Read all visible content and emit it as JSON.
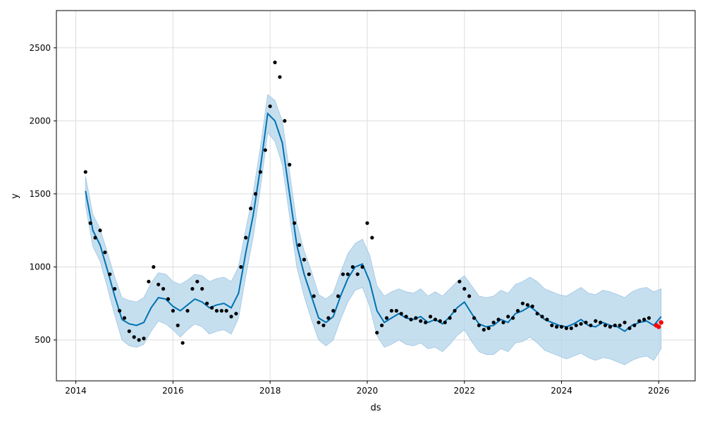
{
  "chart_data": {
    "type": "line",
    "xlabel": "ds",
    "ylabel": "y",
    "x_range": [
      2013.6,
      2026.75
    ],
    "ylim": [
      220,
      2755
    ],
    "x_ticks": [
      2014,
      2016,
      2018,
      2020,
      2022,
      2024,
      2026
    ],
    "y_ticks": [
      500,
      1000,
      1500,
      2000,
      2500
    ],
    "grid": true,
    "colors": {
      "forecast": "#0072B2",
      "uncertainty": "#B3D4EA",
      "observed": "#000000",
      "highlight": "#ff0000"
    },
    "forecast": {
      "x": [
        2014.2,
        2014.35,
        2014.5,
        2014.65,
        2014.8,
        2014.95,
        2015.1,
        2015.25,
        2015.4,
        2015.55,
        2015.7,
        2015.85,
        2016.0,
        2016.15,
        2016.3,
        2016.45,
        2016.6,
        2016.75,
        2016.9,
        2017.05,
        2017.2,
        2017.35,
        2017.5,
        2017.65,
        2017.8,
        2017.95,
        2018.1,
        2018.25,
        2018.4,
        2018.55,
        2018.7,
        2018.85,
        2019.0,
        2019.15,
        2019.3,
        2019.45,
        2019.6,
        2019.75,
        2019.9,
        2020.05,
        2020.2,
        2020.35,
        2020.5,
        2020.65,
        2020.8,
        2020.95,
        2021.1,
        2021.25,
        2021.4,
        2021.55,
        2021.7,
        2021.85,
        2022.0,
        2022.15,
        2022.3,
        2022.45,
        2022.6,
        2022.75,
        2022.9,
        2023.05,
        2023.2,
        2023.35,
        2023.5,
        2023.65,
        2023.8,
        2023.95,
        2024.1,
        2024.25,
        2024.4,
        2024.55,
        2024.7,
        2024.85,
        2025.0,
        2025.15,
        2025.3,
        2025.45,
        2025.6,
        2025.75,
        2025.9,
        2026.05
      ],
      "yhat": [
        1520,
        1250,
        1150,
        980,
        800,
        640,
        610,
        600,
        620,
        720,
        790,
        780,
        730,
        700,
        740,
        780,
        760,
        720,
        740,
        750,
        720,
        820,
        1100,
        1350,
        1680,
        2050,
        2000,
        1850,
        1500,
        1150,
        950,
        800,
        650,
        620,
        660,
        800,
        920,
        1000,
        1020,
        900,
        700,
        620,
        650,
        680,
        650,
        640,
        660,
        620,
        640,
        610,
        660,
        720,
        760,
        680,
        610,
        590,
        600,
        640,
        620,
        680,
        700,
        730,
        690,
        640,
        620,
        600,
        590,
        610,
        640,
        600,
        590,
        620,
        600,
        590,
        560,
        600,
        620,
        630,
        600,
        660
      ],
      "upper": [
        1620,
        1360,
        1260,
        1100,
        930,
        790,
        770,
        760,
        790,
        890,
        960,
        950,
        900,
        880,
        910,
        950,
        940,
        900,
        920,
        930,
        900,
        1000,
        1260,
        1500,
        1820,
        2180,
        2140,
        2000,
        1650,
        1300,
        1110,
        970,
        810,
        780,
        820,
        960,
        1090,
        1160,
        1190,
        1080,
        870,
        800,
        830,
        850,
        830,
        820,
        850,
        800,
        830,
        800,
        850,
        900,
        940,
        870,
        800,
        790,
        800,
        840,
        820,
        880,
        900,
        930,
        900,
        850,
        830,
        810,
        800,
        830,
        860,
        820,
        810,
        840,
        830,
        810,
        790,
        830,
        850,
        860,
        830,
        850
      ],
      "lower": [
        1420,
        1140,
        1040,
        860,
        670,
        500,
        460,
        450,
        470,
        560,
        630,
        610,
        570,
        520,
        570,
        610,
        590,
        540,
        560,
        570,
        540,
        650,
        940,
        1200,
        1540,
        1920,
        1860,
        1700,
        1350,
        1000,
        800,
        640,
        500,
        460,
        500,
        640,
        760,
        840,
        860,
        730,
        530,
        450,
        470,
        500,
        470,
        460,
        480,
        440,
        450,
        420,
        470,
        530,
        570,
        490,
        420,
        400,
        400,
        440,
        420,
        480,
        490,
        520,
        480,
        430,
        410,
        390,
        370,
        390,
        410,
        380,
        360,
        380,
        370,
        350,
        330,
        360,
        380,
        390,
        360,
        440
      ]
    },
    "observed": {
      "x": [
        2014.2,
        2014.3,
        2014.4,
        2014.5,
        2014.6,
        2014.7,
        2014.8,
        2014.9,
        2015.0,
        2015.1,
        2015.2,
        2015.3,
        2015.4,
        2015.5,
        2015.6,
        2015.7,
        2015.8,
        2015.9,
        2016.0,
        2016.1,
        2016.2,
        2016.3,
        2016.4,
        2016.5,
        2016.6,
        2016.7,
        2016.8,
        2016.9,
        2017.0,
        2017.1,
        2017.2,
        2017.3,
        2017.4,
        2017.5,
        2017.6,
        2017.7,
        2017.8,
        2017.9,
        2018.0,
        2018.1,
        2018.2,
        2018.3,
        2018.4,
        2018.5,
        2018.6,
        2018.7,
        2018.8,
        2018.9,
        2019.0,
        2019.1,
        2019.2,
        2019.3,
        2019.4,
        2019.5,
        2019.6,
        2019.7,
        2019.8,
        2019.9,
        2020.0,
        2020.1,
        2020.2,
        2020.3,
        2020.4,
        2020.5,
        2020.6,
        2020.7,
        2020.8,
        2020.9,
        2021.0,
        2021.1,
        2021.2,
        2021.3,
        2021.4,
        2021.5,
        2021.6,
        2021.7,
        2021.8,
        2021.9,
        2022.0,
        2022.1,
        2022.2,
        2022.3,
        2022.4,
        2022.5,
        2022.6,
        2022.7,
        2022.8,
        2022.9,
        2023.0,
        2023.1,
        2023.2,
        2023.3,
        2023.4,
        2023.5,
        2023.6,
        2023.7,
        2023.8,
        2023.9,
        2024.0,
        2024.1,
        2024.2,
        2024.3,
        2024.4,
        2024.5,
        2024.6,
        2024.7,
        2024.8,
        2024.9,
        2025.0,
        2025.1,
        2025.2,
        2025.3,
        2025.4,
        2025.5,
        2025.6,
        2025.7,
        2025.8
      ],
      "y": [
        1650,
        1300,
        1200,
        1250,
        1100,
        950,
        850,
        700,
        650,
        560,
        520,
        500,
        510,
        900,
        1000,
        880,
        850,
        780,
        700,
        600,
        480,
        700,
        850,
        900,
        850,
        750,
        720,
        700,
        700,
        700,
        660,
        680,
        1000,
        1200,
        1400,
        1500,
        1650,
        1800,
        2100,
        2400,
        2300,
        2000,
        1700,
        1300,
        1150,
        1050,
        950,
        800,
        620,
        600,
        650,
        700,
        800,
        950,
        950,
        1000,
        950,
        1000,
        1300,
        1200,
        550,
        600,
        650,
        700,
        700,
        680,
        660,
        640,
        650,
        630,
        620,
        660,
        640,
        630,
        620,
        650,
        700,
        900,
        850,
        800,
        650,
        600,
        570,
        580,
        620,
        640,
        620,
        660,
        650,
        700,
        750,
        740,
        730,
        680,
        660,
        640,
        600,
        590,
        590,
        580,
        580,
        600,
        610,
        620,
        600,
        630,
        620,
        600,
        590,
        600,
        600,
        620,
        580,
        600,
        630,
        640,
        650
      ]
    },
    "highlight": {
      "x": [
        2025.95,
        2026.0,
        2026.05
      ],
      "y": [
        600,
        590,
        620
      ]
    }
  }
}
